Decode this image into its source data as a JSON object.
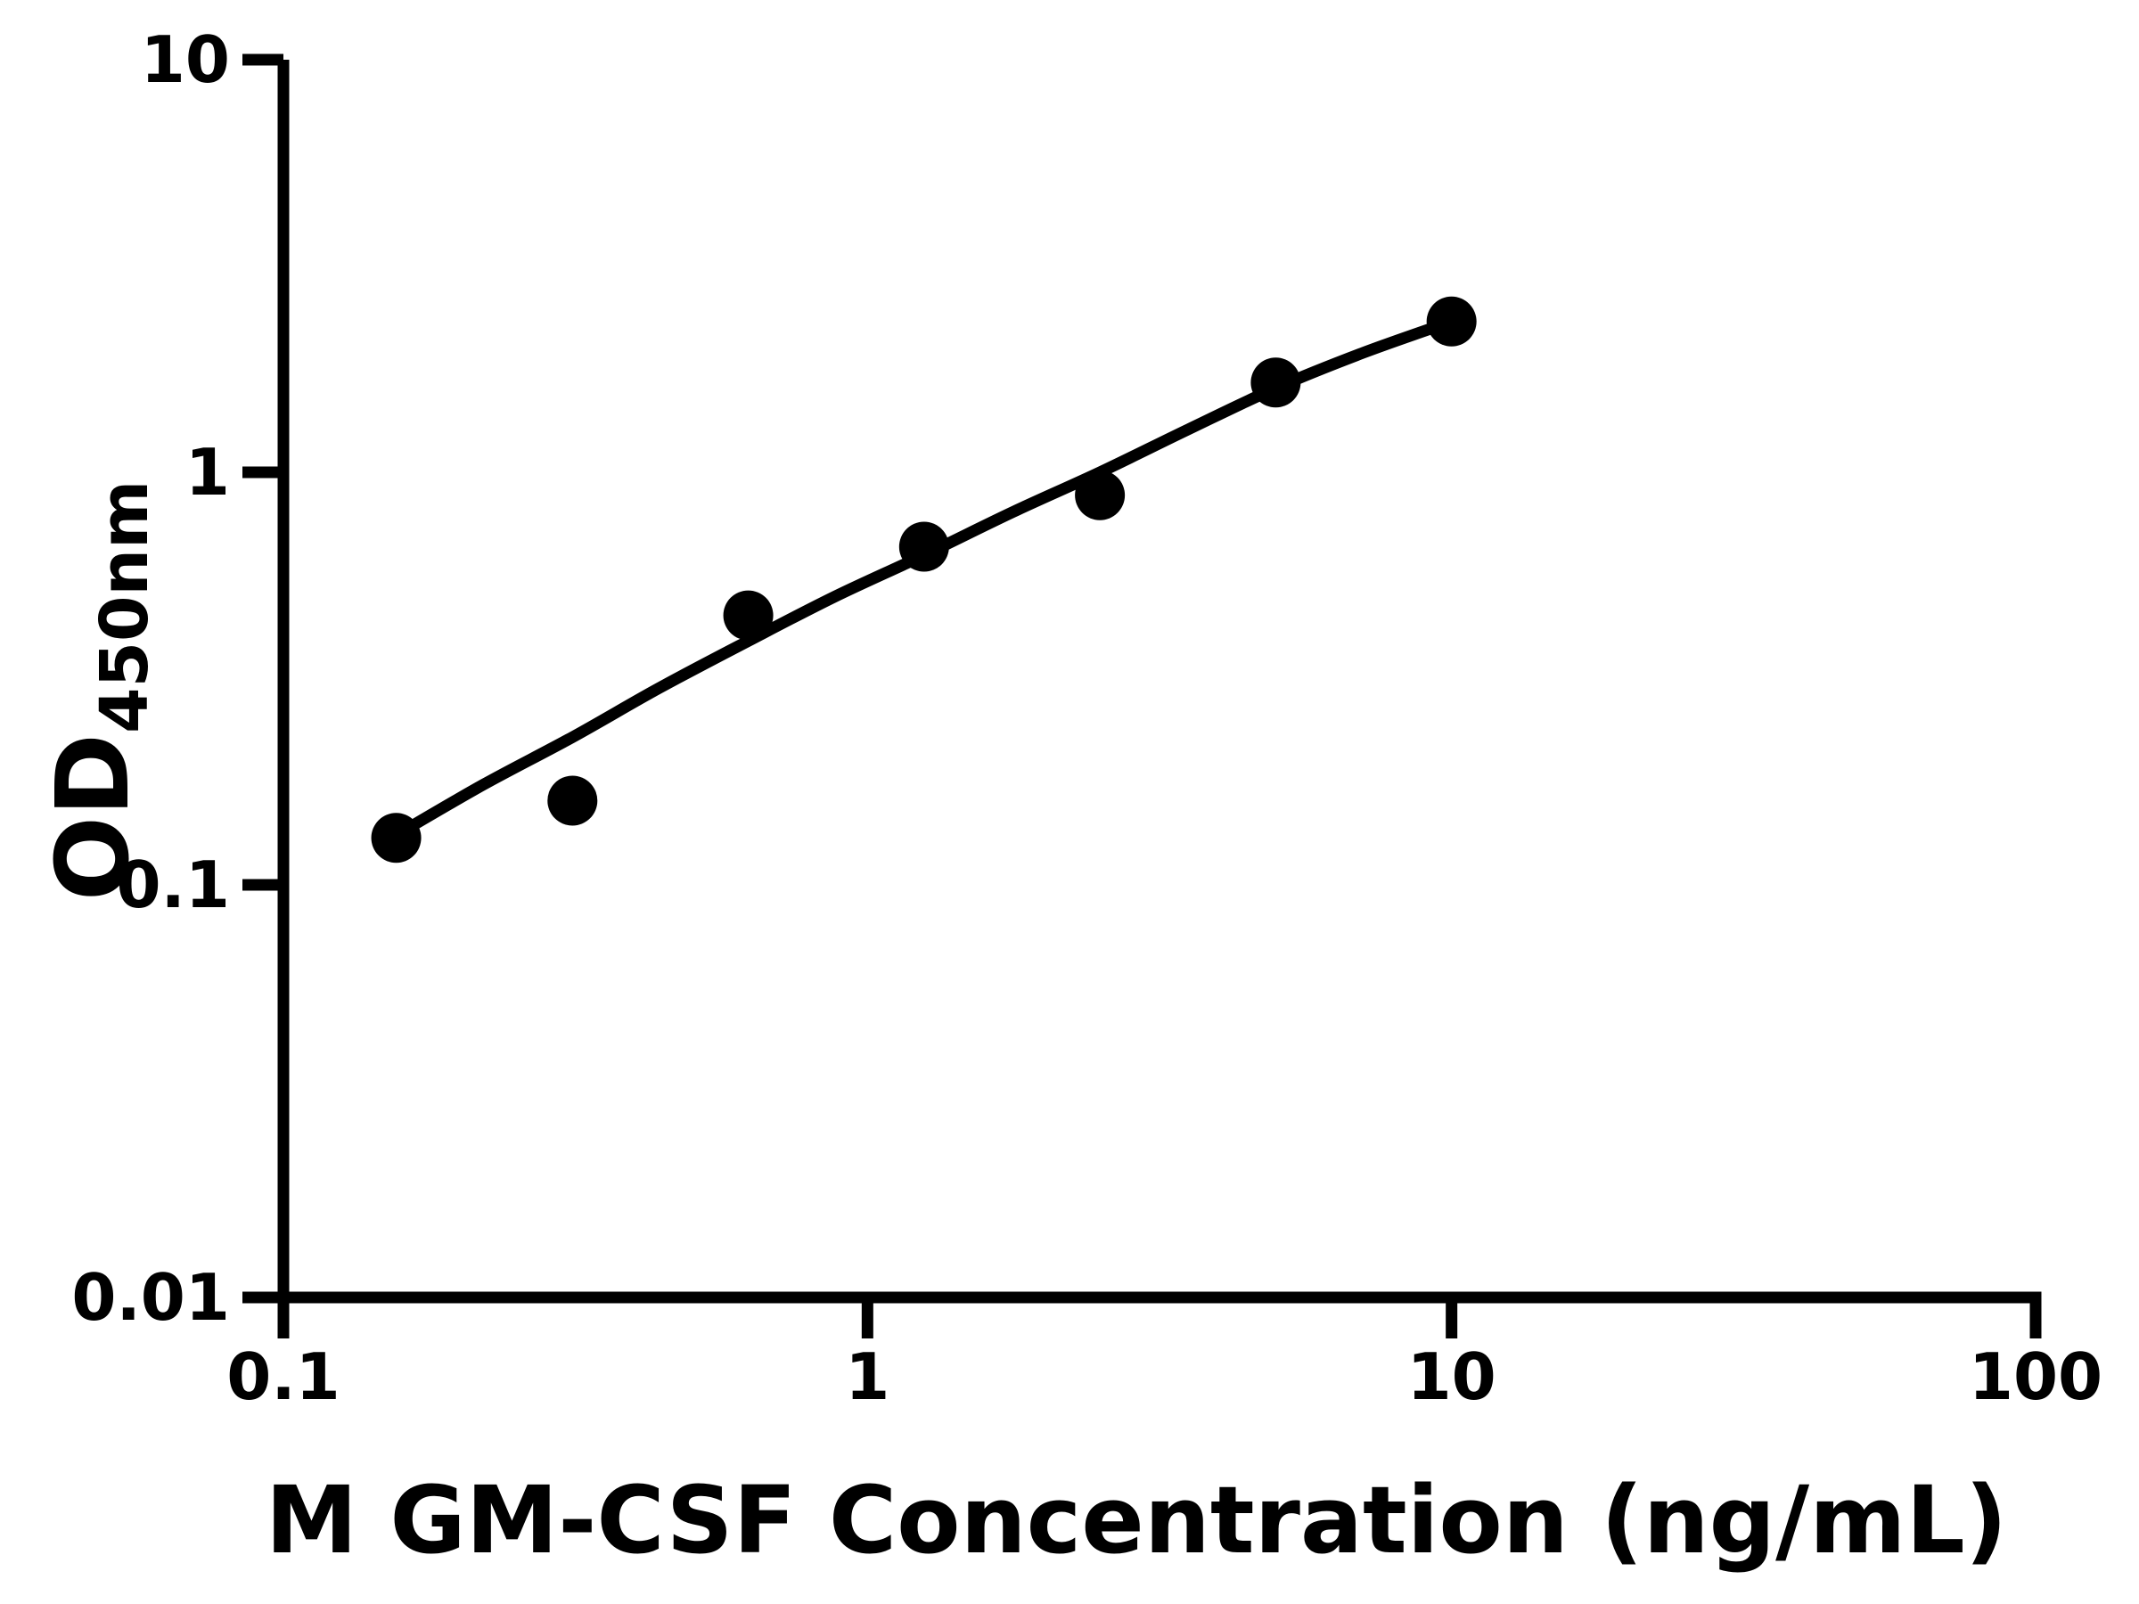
{
  "figure": {
    "background_color": "#ffffff",
    "foreground_color": "#000000"
  },
  "chart_data": {
    "type": "scatter",
    "title": "",
    "xlabel": "M GM-CSF Concentration (ng/mL)",
    "ylabel_main": "OD",
    "ylabel_sub": "450nm",
    "x_scale": "log",
    "y_scale": "log",
    "xlim": [
      0.1,
      100
    ],
    "ylim": [
      0.01,
      10
    ],
    "grid": false,
    "legend": "none",
    "x_ticks": [
      {
        "value": 0.1,
        "label": "0.1"
      },
      {
        "value": 1,
        "label": "1"
      },
      {
        "value": 10,
        "label": "10"
      },
      {
        "value": 100,
        "label": "100"
      }
    ],
    "y_ticks": [
      {
        "value": 0.01,
        "label": "0.01"
      },
      {
        "value": 0.1,
        "label": "0.1"
      },
      {
        "value": 1,
        "label": "1"
      },
      {
        "value": 10,
        "label": "10"
      }
    ],
    "series": [
      {
        "name": "standard-curve-points",
        "marker": "circle",
        "color": "#000000",
        "points": [
          {
            "x": 0.156,
            "y": 0.13
          },
          {
            "x": 0.3125,
            "y": 0.16
          },
          {
            "x": 0.625,
            "y": 0.45
          },
          {
            "x": 1.25,
            "y": 0.66
          },
          {
            "x": 2.5,
            "y": 0.88
          },
          {
            "x": 5,
            "y": 1.65
          },
          {
            "x": 10,
            "y": 2.32
          }
        ]
      }
    ],
    "fit_curve": {
      "name": "four-parameter-logistic-fit",
      "color": "#000000",
      "points": [
        {
          "x": 0.156,
          "y": 0.132
        },
        {
          "x": 0.22,
          "y": 0.175
        },
        {
          "x": 0.3125,
          "y": 0.228
        },
        {
          "x": 0.44,
          "y": 0.3
        },
        {
          "x": 0.625,
          "y": 0.39
        },
        {
          "x": 0.88,
          "y": 0.5
        },
        {
          "x": 1.25,
          "y": 0.63
        },
        {
          "x": 1.77,
          "y": 0.8
        },
        {
          "x": 2.5,
          "y": 1.0
        },
        {
          "x": 3.54,
          "y": 1.27
        },
        {
          "x": 5,
          "y": 1.6
        },
        {
          "x": 7.07,
          "y": 1.95
        },
        {
          "x": 10,
          "y": 2.32
        }
      ]
    }
  }
}
